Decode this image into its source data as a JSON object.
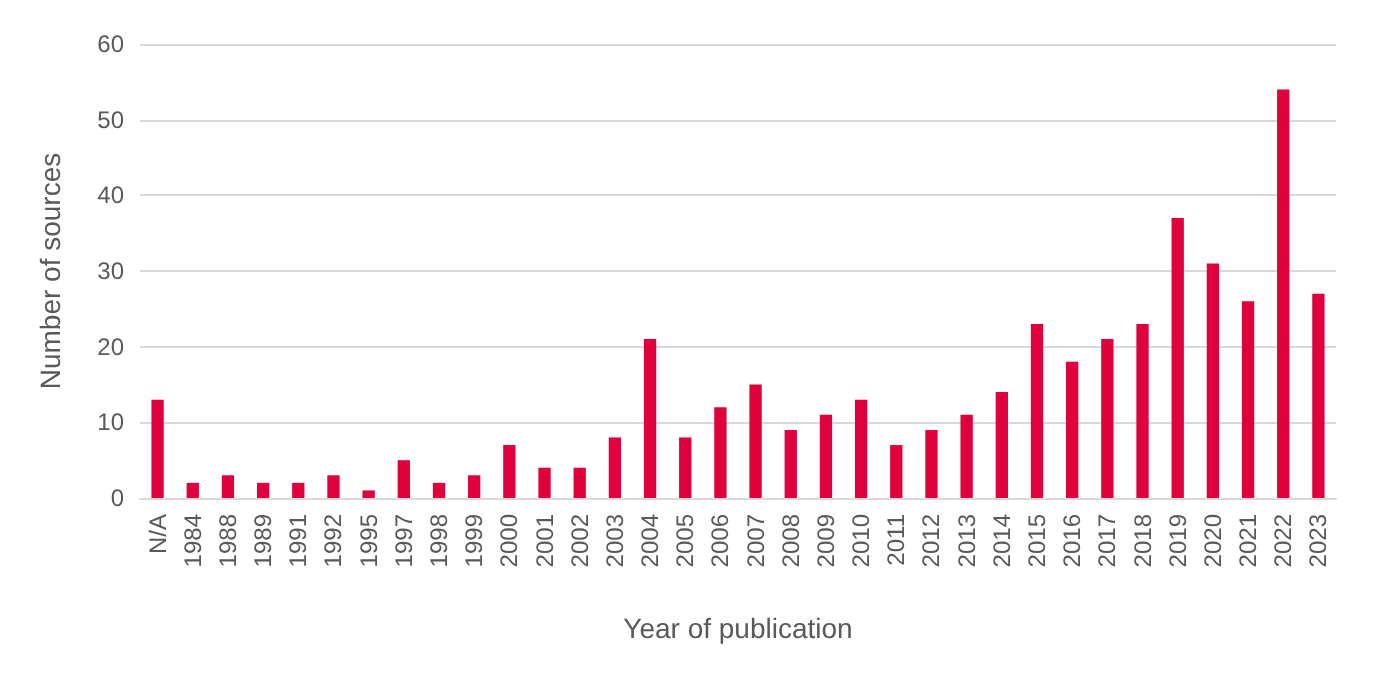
{
  "chart_data": {
    "type": "bar",
    "xlabel": "Year of publication",
    "ylabel": "Number of sources",
    "categories": [
      "N/A",
      "1984",
      "1988",
      "1989",
      "1991",
      "1992",
      "1995",
      "1997",
      "1998",
      "1999",
      "2000",
      "2001",
      "2002",
      "2003",
      "2004",
      "2005",
      "2006",
      "2007",
      "2008",
      "2009",
      "2010",
      "2011",
      "2012",
      "2013",
      "2014",
      "2015",
      "2016",
      "2017",
      "2018",
      "2019",
      "2020",
      "2021",
      "2022",
      "2023"
    ],
    "values": [
      13,
      2,
      3,
      2,
      2,
      3,
      1,
      5,
      2,
      3,
      7,
      4,
      4,
      8,
      21,
      8,
      12,
      15,
      9,
      11,
      13,
      7,
      9,
      11,
      14,
      23,
      18,
      21,
      23,
      37,
      31,
      26,
      54,
      27
    ],
    "color": "#e0003c",
    "ylim": [
      0,
      60
    ],
    "yticks": [
      0,
      10,
      20,
      30,
      40,
      50,
      60
    ],
    "grid": "y"
  }
}
